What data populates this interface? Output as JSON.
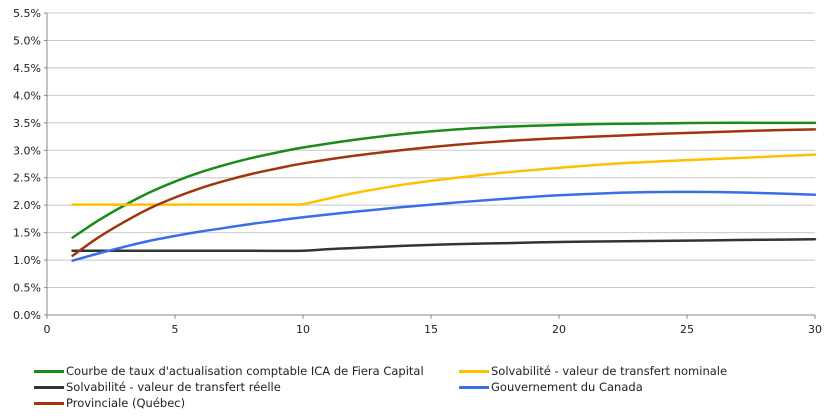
{
  "chart_data": {
    "type": "line",
    "title": "",
    "xlabel": "",
    "ylabel": "",
    "xlim": [
      0,
      30
    ],
    "ylim": [
      0,
      5.5
    ],
    "x_ticks": [
      "0",
      "5",
      "10",
      "15",
      "20",
      "25",
      "30"
    ],
    "y_ticks": [
      "0.0%",
      "0.5%",
      "1.0%",
      "1.5%",
      "2.0%",
      "2.5%",
      "3.0%",
      "3.5%",
      "4.0%",
      "4.5%",
      "5.0%",
      "5.5%"
    ],
    "grid": "horizontal",
    "legend_position": "bottom",
    "series": [
      {
        "name": "Courbe de taux d'actualisation comptable ICA de Fiera Capital",
        "color": "#1a8a1a",
        "x": [
          1,
          2,
          3,
          4,
          5,
          6,
          7,
          8,
          9,
          10,
          12,
          14,
          16,
          18,
          20,
          22,
          24,
          26,
          28,
          30
        ],
        "y": [
          1.41,
          1.72,
          1.99,
          2.23,
          2.43,
          2.6,
          2.74,
          2.86,
          2.96,
          3.05,
          3.19,
          3.3,
          3.38,
          3.43,
          3.46,
          3.48,
          3.49,
          3.5,
          3.5,
          3.5
        ]
      },
      {
        "name": "Solvabilité - valeur de transfert nominale",
        "color": "#ffc000",
        "x": [
          1,
          2,
          4,
          6,
          8,
          9.5,
          10,
          11,
          12,
          14,
          16,
          18,
          20,
          22,
          24,
          26,
          28,
          30
        ],
        "y": [
          2.01,
          2.01,
          2.01,
          2.01,
          2.01,
          2.01,
          2.02,
          2.12,
          2.22,
          2.38,
          2.5,
          2.6,
          2.68,
          2.75,
          2.8,
          2.84,
          2.88,
          2.92
        ]
      },
      {
        "name": "Solvabilité - valeur de transfert réelle",
        "color": "#333333",
        "x": [
          1,
          2,
          4,
          6,
          8,
          10,
          11,
          12,
          14,
          16,
          18,
          20,
          22,
          24,
          26,
          28,
          30
        ],
        "y": [
          1.17,
          1.17,
          1.17,
          1.17,
          1.17,
          1.17,
          1.2,
          1.22,
          1.26,
          1.29,
          1.31,
          1.33,
          1.34,
          1.35,
          1.36,
          1.37,
          1.38
        ]
      },
      {
        "name": "Gouvernement du Canada",
        "color": "#3a6ee8",
        "x": [
          1,
          2,
          3,
          4,
          5,
          6,
          7,
          8,
          9,
          10,
          12,
          14,
          16,
          18,
          20,
          22,
          24,
          26,
          28,
          30
        ],
        "y": [
          0.99,
          1.12,
          1.24,
          1.35,
          1.44,
          1.52,
          1.59,
          1.66,
          1.72,
          1.78,
          1.88,
          1.97,
          2.05,
          2.12,
          2.18,
          2.22,
          2.24,
          2.24,
          2.22,
          2.19
        ]
      },
      {
        "name": "Provinciale (Québec)",
        "color": "#a0350f",
        "x": [
          1,
          2,
          3,
          4,
          5,
          6,
          7,
          8,
          9,
          10,
          12,
          14,
          16,
          18,
          20,
          22,
          24,
          26,
          28,
          30
        ],
        "y": [
          1.08,
          1.41,
          1.69,
          1.94,
          2.14,
          2.31,
          2.45,
          2.57,
          2.67,
          2.76,
          2.9,
          3.01,
          3.1,
          3.17,
          3.22,
          3.26,
          3.3,
          3.33,
          3.36,
          3.38
        ]
      }
    ]
  }
}
